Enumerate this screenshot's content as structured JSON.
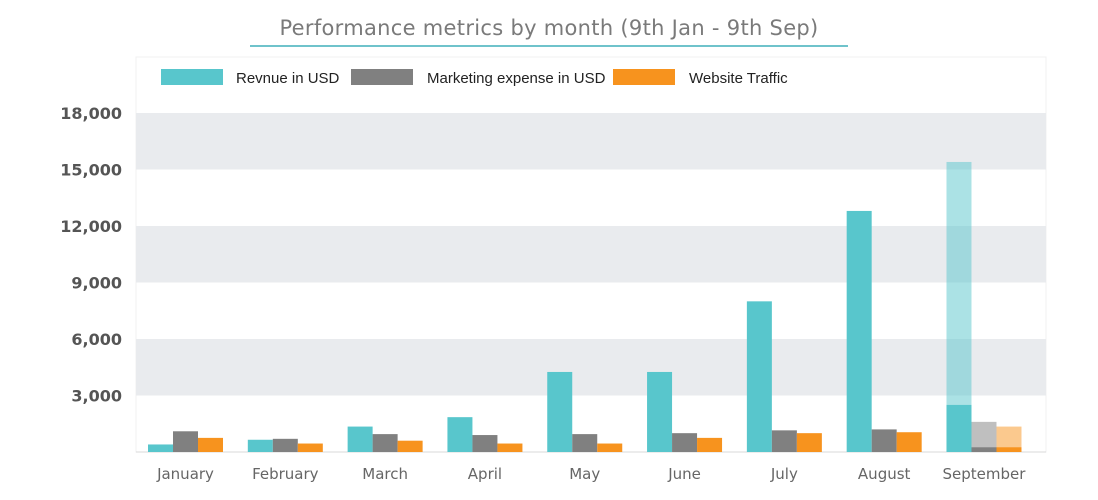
{
  "chart_data": {
    "type": "bar",
    "title": "Performance metrics by month (9th Jan - 9th Sep)",
    "categories": [
      "January",
      "February",
      "March",
      "April",
      "May",
      "June",
      "July",
      "August",
      "September"
    ],
    "series": [
      {
        "name": "Revnue in USD",
        "color": "#58c6cc",
        "values": [
          400,
          650,
          1350,
          1850,
          4250,
          4250,
          8000,
          12800,
          2500
        ],
        "projected": [
          null,
          null,
          null,
          null,
          null,
          null,
          null,
          null,
          15400
        ]
      },
      {
        "name": "Marketing expense in USD",
        "color": "#808080",
        "values": [
          1100,
          700,
          950,
          900,
          950,
          1000,
          1150,
          1200,
          250
        ],
        "projected": [
          null,
          null,
          null,
          null,
          null,
          null,
          null,
          null,
          1600
        ]
      },
      {
        "name": "Website Traffic",
        "color": "#f7931e",
        "values": [
          750,
          450,
          600,
          450,
          450,
          750,
          1000,
          1050,
          250
        ],
        "projected": [
          null,
          null,
          null,
          null,
          null,
          null,
          null,
          null,
          1350
        ]
      }
    ],
    "yticks": [
      "3,000",
      "6,000",
      "9,000",
      "12,000",
      "15,000",
      "18,000"
    ],
    "ylim": [
      0,
      18000
    ],
    "grid": "alternating horizontal bands",
    "legend": "top-left"
  }
}
